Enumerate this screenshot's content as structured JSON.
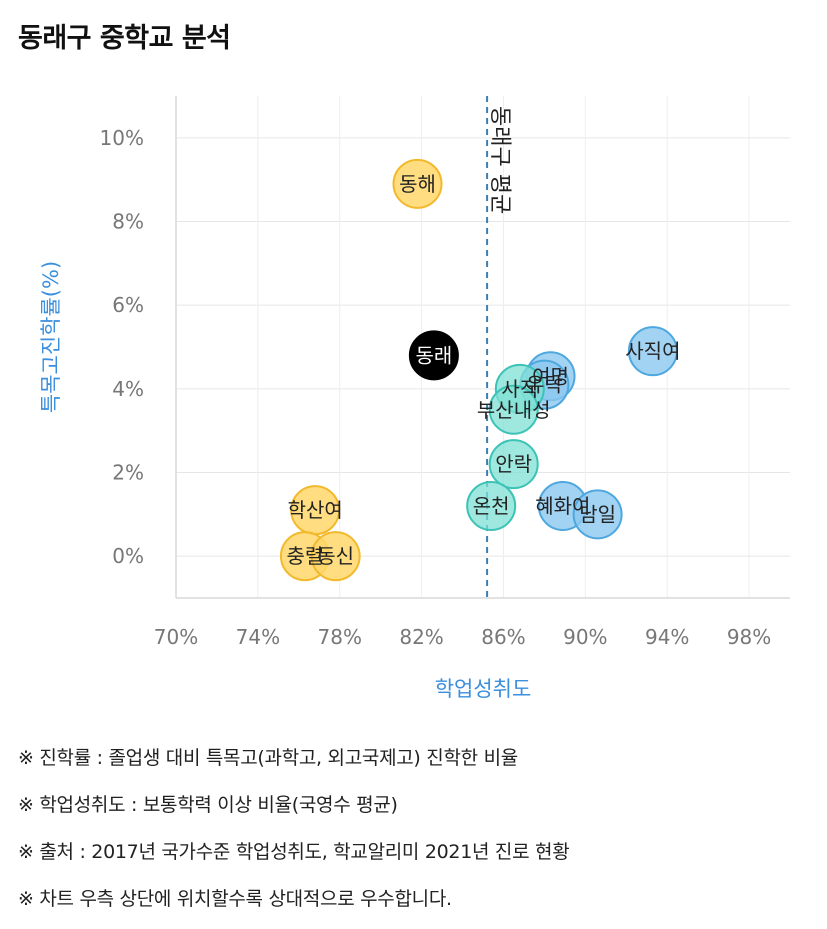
{
  "page_title": "동래구 중학교 분석",
  "chart_data": {
    "type": "scatter",
    "title": "동래구 중학교 분석",
    "xlabel": "학업성취도",
    "ylabel": "특목고진학률(%)",
    "xlim": [
      70,
      100
    ],
    "ylim": [
      -1,
      11
    ],
    "xticks": [
      70,
      74,
      78,
      82,
      86,
      90,
      94,
      98
    ],
    "xtick_labels": [
      "70%",
      "74%",
      "78%",
      "82%",
      "86%",
      "90%",
      "94%",
      "98%"
    ],
    "yticks": [
      0,
      2,
      4,
      6,
      8,
      10
    ],
    "ytick_labels": [
      "0%",
      "2%",
      "4%",
      "6%",
      "8%",
      "10%"
    ],
    "grid": true,
    "reference_line": {
      "x": 85.2,
      "label": "동래구 평균"
    },
    "colors": {
      "yellow": "#ffd76a",
      "yellow_edge": "#f2b92c",
      "teal": "#7fe0d6",
      "teal_edge": "#3cc3b5",
      "blue": "#8cc8f0",
      "blue_edge": "#4ea7df",
      "highlight": "#000000",
      "axis_label": "#3b8fdc"
    },
    "points": [
      {
        "label": "동해",
        "x": 81.8,
        "y": 8.9,
        "group": "yellow"
      },
      {
        "label": "동래",
        "x": 82.6,
        "y": 4.8,
        "group": "highlight"
      },
      {
        "label": "학산여",
        "x": 76.8,
        "y": 1.1,
        "group": "yellow"
      },
      {
        "label": "충렬",
        "x": 76.3,
        "y": 0.0,
        "group": "yellow"
      },
      {
        "label": "동신",
        "x": 77.8,
        "y": 0.0,
        "group": "yellow"
      },
      {
        "label": "사직여",
        "x": 93.3,
        "y": 4.9,
        "group": "blue"
      },
      {
        "label": "여명",
        "x": 88.3,
        "y": 4.3,
        "group": "blue"
      },
      {
        "label": "유락",
        "x": 88.0,
        "y": 4.1,
        "group": "blue"
      },
      {
        "label": "사직",
        "x": 86.8,
        "y": 4.0,
        "group": "teal"
      },
      {
        "label": "부산내성",
        "x": 86.5,
        "y": 3.5,
        "group": "teal"
      },
      {
        "label": "안락",
        "x": 86.5,
        "y": 2.2,
        "group": "teal"
      },
      {
        "label": "온천",
        "x": 85.4,
        "y": 1.2,
        "group": "teal"
      },
      {
        "label": "혜화여",
        "x": 88.9,
        "y": 1.2,
        "group": "blue"
      },
      {
        "label": "남일",
        "x": 90.6,
        "y": 1.0,
        "group": "blue"
      }
    ]
  },
  "notes": [
    "※ 진학률 : 졸업생 대비 특목고(과학고, 외고국제고) 진학한 비율",
    "※ 학업성취도 : 보통학력 이상 비율(국영수 평균)",
    "※ 출처 : 2017년 국가수준 학업성취도, 학교알리미 2021년 진로 현황",
    "※ 차트 우측 상단에 위치할수록 상대적으로 우수합니다."
  ]
}
